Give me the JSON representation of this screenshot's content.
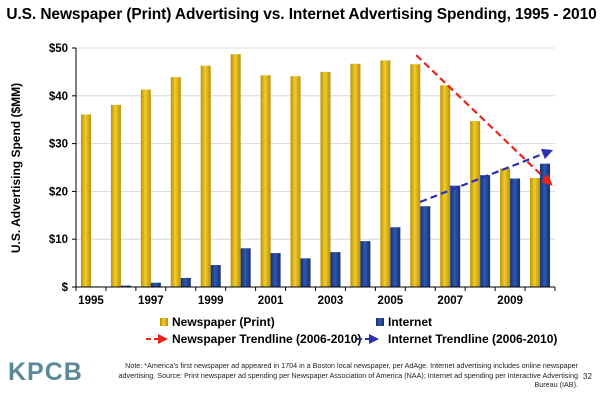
{
  "title": "U.S. Newspaper (Print) Advertising vs. Internet Advertising Spending, 1995 - 2010",
  "chart_data": {
    "type": "bar",
    "title": "U.S. Newspaper (Print) Advertising vs. Internet Advertising Spending, 1995 - 2010",
    "xlabel": "",
    "ylabel": "U.S. Advertising Spend ($MM)",
    "ylim": [
      0,
      50
    ],
    "y_ticks": [
      "$",
      "$10",
      "$20",
      "$30",
      "$40",
      "$50"
    ],
    "y_tick_values": [
      0,
      10,
      20,
      30,
      40,
      50
    ],
    "categories": [
      "1995",
      "1996",
      "1997",
      "1998",
      "1999",
      "2000",
      "2001",
      "2002",
      "2003",
      "2004",
      "2005",
      "2006",
      "2007",
      "2008",
      "2009",
      "2010"
    ],
    "x_tick_labels": [
      "1995",
      "1997",
      "1999",
      "2001",
      "2003",
      "2005",
      "2007",
      "2009"
    ],
    "series": [
      {
        "name": "Newspaper (Print)",
        "color": "#d4aa00",
        "values": [
          36.1,
          38.1,
          41.3,
          43.9,
          46.3,
          48.7,
          44.3,
          44.1,
          45.0,
          46.7,
          47.4,
          46.6,
          42.2,
          34.7,
          24.8,
          22.8
        ]
      },
      {
        "name": "Internet",
        "color": "#1f3f8c",
        "values": [
          0.05,
          0.3,
          0.9,
          1.9,
          4.6,
          8.1,
          7.1,
          6.0,
          7.3,
          9.6,
          12.5,
          16.9,
          21.2,
          23.4,
          22.7,
          25.8
        ]
      }
    ],
    "trendlines": [
      {
        "name": "Newspaper Trendline (2006-2010)",
        "color": "#e8231a",
        "from": {
          "x": "2006",
          "y": 48.5
        },
        "to": {
          "x": "2010",
          "y": 21.5
        }
      },
      {
        "name": "Internet Trendline (2006-2010)",
        "color": "#2a2fb8",
        "from": {
          "x": "2006",
          "y": 17.8
        },
        "to": {
          "x": "2010",
          "y": 28.5
        }
      }
    ],
    "grid": true,
    "legend_placement": "bottom"
  },
  "legend": {
    "newspaper": "Newspaper (Print)",
    "internet": "Internet",
    "newspaper_trend": "Newspaper Trendline (2006-2010)",
    "internet_trend": "Internet Trendline (2006-2010)"
  },
  "logo": "KPCB",
  "note": "Note: *America's first newspaper ad appeared in 1704 in a Boston local newspaper, per AdAge. Internet advertising includes online newspaper advertising.  Source: Print newspaper ad spending per Newspaper Association of America (NAA); Internet ad spending per Interactive Advertising Bureau (IAB).",
  "page_number": "32"
}
